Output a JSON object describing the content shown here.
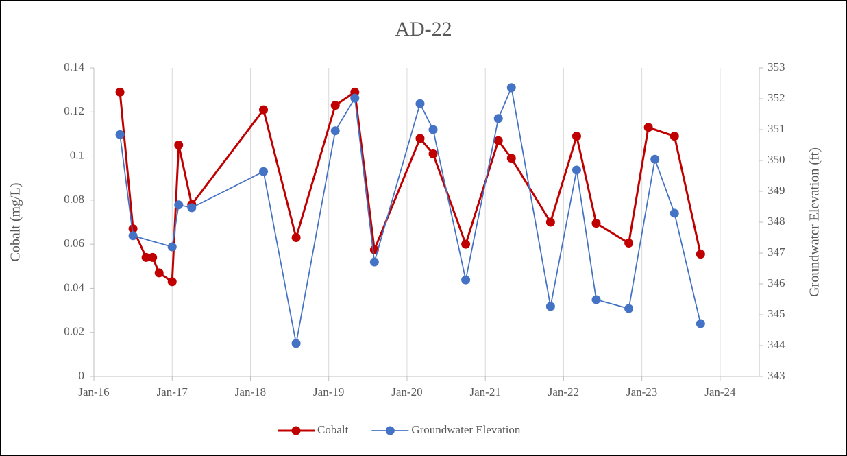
{
  "chart_data": {
    "type": "line",
    "title": "AD-22",
    "ylabel": "Cobalt (mg/L)",
    "y2label": "Groundwater Elevation (ft)",
    "xlim": [
      "2016-01",
      "2024-07"
    ],
    "xticks": [
      {
        "value": "2016-01",
        "label": "Jan-16"
      },
      {
        "value": "2017-01",
        "label": "Jan-17"
      },
      {
        "value": "2018-01",
        "label": "Jan-18"
      },
      {
        "value": "2019-01",
        "label": "Jan-19"
      },
      {
        "value": "2020-01",
        "label": "Jan-20"
      },
      {
        "value": "2021-01",
        "label": "Jan-21"
      },
      {
        "value": "2022-01",
        "label": "Jan-22"
      },
      {
        "value": "2023-01",
        "label": "Jan-23"
      },
      {
        "value": "2024-01",
        "label": "Jan-24"
      }
    ],
    "ylim": [
      0,
      0.14
    ],
    "yticks": [
      0,
      0.02,
      0.04,
      0.06,
      0.08,
      0.1,
      0.12,
      0.14
    ],
    "y2lim": [
      343,
      353
    ],
    "y2ticks": [
      343,
      344,
      345,
      346,
      347,
      348,
      349,
      350,
      351,
      352,
      353
    ],
    "grid": "x",
    "legend": "bottom",
    "series": [
      {
        "name": "Cobalt",
        "color": "#c00000",
        "x": [
          "2016-05",
          "2016-07",
          "2016-09",
          "2016-10",
          "2016-11",
          "2017-01",
          "2017-02",
          "2017-04",
          "2018-03",
          "2018-08",
          "2019-02",
          "2019-05",
          "2019-08",
          "2020-03",
          "2020-05",
          "2020-10",
          "2021-03",
          "2021-05",
          "2021-11",
          "2022-03",
          "2022-06",
          "2022-11",
          "2023-02",
          "2023-06",
          "2023-10"
        ],
        "values": [
          0.129,
          0.067,
          0.054,
          0.054,
          0.047,
          0.043,
          0.105,
          0.078,
          0.121,
          0.063,
          0.123,
          0.129,
          0.0575,
          0.108,
          0.101,
          0.06,
          0.107,
          0.099,
          0.07,
          0.109,
          0.0695,
          0.0605,
          0.113,
          0.109,
          0.0555
        ]
      },
      {
        "name": "Groundwater Elevation",
        "color": "#4472c4",
        "axis": "y2",
        "x": [
          "2016-05",
          "2016-07",
          "2017-01",
          "2017-02",
          "2017-04",
          "2018-03",
          "2018-08",
          "2019-02",
          "2019-05",
          "2019-08",
          "2020-03",
          "2020-05",
          "2020-10",
          "2021-03",
          "2021-05",
          "2021-11",
          "2022-03",
          "2022-06",
          "2022-11",
          "2023-03",
          "2023-06",
          "2023-10"
        ],
        "values": [
          350.84,
          347.56,
          347.2,
          348.56,
          348.47,
          349.64,
          344.07,
          350.96,
          352.02,
          346.71,
          351.84,
          351.0,
          346.13,
          351.36,
          352.36,
          345.27,
          349.69,
          345.49,
          345.2,
          350.04,
          348.29,
          344.71
        ]
      }
    ]
  }
}
